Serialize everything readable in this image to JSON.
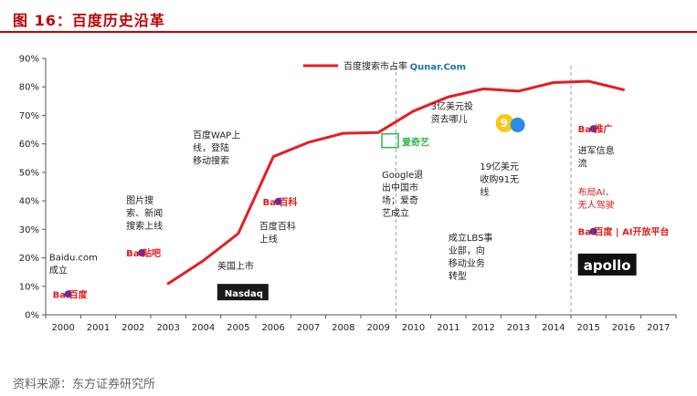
{
  "title": "图 16：百度历史沿革",
  "source": "资料来源：东方证券研究所",
  "colors": {
    "accent": "#c00000",
    "line": "#e31e24",
    "divider": "#8aa3b8"
  },
  "chart_data": {
    "type": "line",
    "x": [
      2000,
      2001,
      2002,
      2003,
      2004,
      2005,
      2006,
      2007,
      2008,
      2009,
      2010,
      2011,
      2012,
      2013,
      2014,
      2015,
      2016,
      2017
    ],
    "x_tick_labels": [
      "2000",
      "2001",
      "2002",
      "2003",
      "2004",
      "2005",
      "2006",
      "2007",
      "2008",
      "2009",
      "2010",
      "2011",
      "2012",
      "2013",
      "2014",
      "2015",
      "2016",
      "2017"
    ],
    "y_tick_labels": [
      "0%",
      "10%",
      "20%",
      "30%",
      "40%",
      "50%",
      "60%",
      "70%",
      "80%",
      "90%"
    ],
    "ylim": [
      0,
      90
    ],
    "legend": {
      "label": "百度搜索市占率",
      "position": "top-center"
    },
    "series": [
      {
        "name": "百度搜索市占率",
        "points": [
          [
            2003,
            11
          ],
          [
            2004,
            19
          ],
          [
            2005,
            28.5
          ],
          [
            2006,
            55.5
          ],
          [
            2007,
            60.5
          ],
          [
            2008,
            63.7
          ],
          [
            2009,
            64
          ],
          [
            2010,
            71.5
          ],
          [
            2011,
            76.5
          ],
          [
            2012,
            79.3
          ],
          [
            2013,
            78.5
          ],
          [
            2014,
            81.5
          ],
          [
            2015,
            82
          ],
          [
            2016,
            79
          ]
        ]
      }
    ],
    "dividers": [
      2009.5,
      2014.5
    ],
    "annotations": [
      {
        "lines": [
          "Baidu.com",
          "成立"
        ],
        "x": 2000,
        "y": 19,
        "color": "dark"
      },
      {
        "lines": [
          "图片搜",
          "索、新闻",
          "搜索上线"
        ],
        "x": 2002.2,
        "y": 39,
        "color": "dark"
      },
      {
        "lines": [
          "百度WAP上",
          "线，登陆",
          "移动搜索"
        ],
        "x": 2004.1,
        "y": 62,
        "color": "dark"
      },
      {
        "lines": [
          "百度百科",
          "上线"
        ],
        "x": 2006,
        "y": 30,
        "color": "dark"
      },
      {
        "lines": [
          "美国上市"
        ],
        "x": 2004.8,
        "y": 16,
        "color": "dark"
      },
      {
        "lines": [
          "Google退",
          "出中国市",
          "场；爱奇",
          "艺成立"
        ],
        "x": 2009.5,
        "y": 48,
        "color": "dark"
      },
      {
        "lines": [
          "3亿美元投",
          "资去哪儿"
        ],
        "x": 2010.9,
        "y": 72,
        "color": "dark"
      },
      {
        "lines": [
          "19亿美元",
          "收购91无",
          "线"
        ],
        "x": 2012.3,
        "y": 51,
        "color": "dark"
      },
      {
        "lines": [
          "成立LBS事",
          "业部，向",
          "移动业务",
          "转型"
        ],
        "x": 2011.4,
        "y": 26,
        "color": "dark"
      },
      {
        "lines": [
          "进军信息",
          "流"
        ],
        "x": 2015.1,
        "y": 56.5,
        "color": "dark"
      },
      {
        "lines": [
          "布局AI、",
          "无人驾驶"
        ],
        "x": 2015.1,
        "y": 42,
        "color": "red"
      }
    ],
    "logos": [
      {
        "name": "baidu-logo",
        "text": "Bai百度",
        "x": 2000.1,
        "y": 6
      },
      {
        "name": "baidu-tieba-logo",
        "text": "Bai贴吧",
        "x": 2002.2,
        "y": 20.5
      },
      {
        "name": "baidu-baike-logo",
        "text": "Bai百科",
        "x": 2006.1,
        "y": 38.5
      },
      {
        "name": "nasdaq-logo",
        "text": "Nasdaq",
        "x": 2004.8,
        "y": 7
      },
      {
        "name": "iqiyi-logo",
        "text": "爱奇艺",
        "x": 2009.5,
        "y": 60
      },
      {
        "name": "qunar-logo",
        "text": "Qunar.Com",
        "x": 2010.3,
        "y": 86
      },
      {
        "name": "baidu-91-logo",
        "text": "9",
        "x": 2012.7,
        "y": 66
      },
      {
        "name": "baidu-tuiguang-logo",
        "text": "Bai推广",
        "x": 2015.1,
        "y": 64
      },
      {
        "name": "baidu-ai-logo",
        "text": "Bai百度 | AI开放平台",
        "x": 2015.1,
        "y": 28
      },
      {
        "name": "apollo-logo",
        "text": "apollo",
        "x": 2015.1,
        "y": 17
      }
    ]
  }
}
